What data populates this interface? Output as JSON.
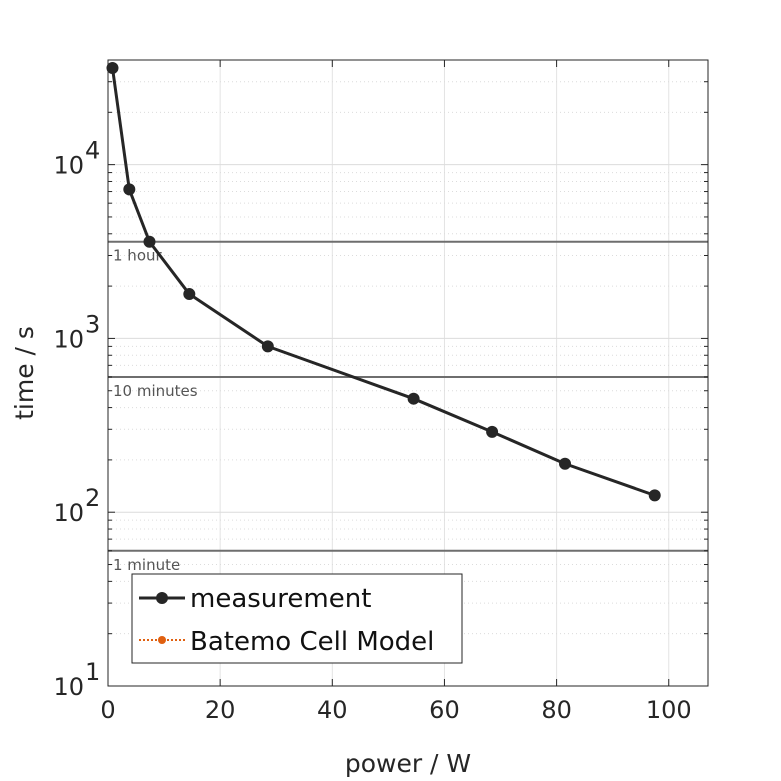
{
  "chart_data": {
    "type": "line",
    "title": "",
    "xlabel": "power / W",
    "ylabel": "time / s",
    "xlim": [
      0,
      107
    ],
    "ylim": [
      10,
      40000
    ],
    "yscale": "log",
    "grid": true,
    "x_ticks": [
      "0",
      "20",
      "40",
      "60",
      "80",
      "100"
    ],
    "x_tick_values": [
      0,
      20,
      40,
      60,
      80,
      100
    ],
    "y_ticks": [
      {
        "base": "10",
        "exp": "1",
        "value": 10
      },
      {
        "base": "10",
        "exp": "2",
        "value": 100
      },
      {
        "base": "10",
        "exp": "3",
        "value": 1000
      },
      {
        "base": "10",
        "exp": "4",
        "value": 10000
      }
    ],
    "reference_lines": [
      {
        "y": 3600,
        "label": "1 hour"
      },
      {
        "y": 600,
        "label": "10 minutes"
      },
      {
        "y": 60,
        "label": "1 minute"
      }
    ],
    "legend_position": "bottom-left",
    "series": [
      {
        "name": "measurement",
        "color": "#262626",
        "marker": "circle",
        "x": [
          0.8,
          3.8,
          7.4,
          14.5,
          28.5,
          54.5,
          68.5,
          81.5,
          97.5
        ],
        "y": [
          36000,
          7200,
          3600,
          1800,
          900,
          450,
          290,
          190,
          125
        ]
      },
      {
        "name": "Batemo Cell Model",
        "color": "#e06010",
        "marker": "circle",
        "line_style": "dotted",
        "x": [],
        "y": []
      }
    ]
  }
}
